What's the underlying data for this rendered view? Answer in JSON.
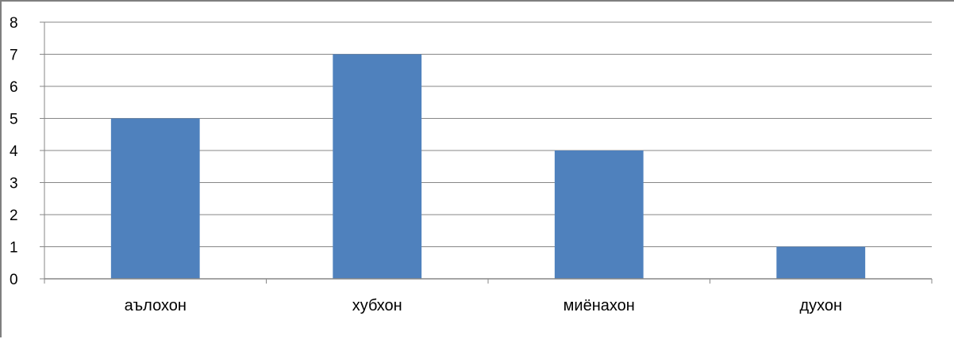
{
  "chart_data": {
    "type": "bar",
    "categories": [
      "аълохон",
      "хубхон",
      "миёнахон",
      "духон"
    ],
    "values": [
      5,
      7,
      4,
      1
    ],
    "title": "",
    "xlabel": "",
    "ylabel": "",
    "ylim": [
      0,
      8
    ],
    "yticks": [
      "0",
      "1",
      "2",
      "3",
      "4",
      "5",
      "6",
      "7",
      "8"
    ],
    "grid": true,
    "legend": "none"
  },
  "colors": {
    "bar": "#4f81bd",
    "gridline": "#878787",
    "axis": "#878787",
    "frame": "#7f7f7f"
  }
}
